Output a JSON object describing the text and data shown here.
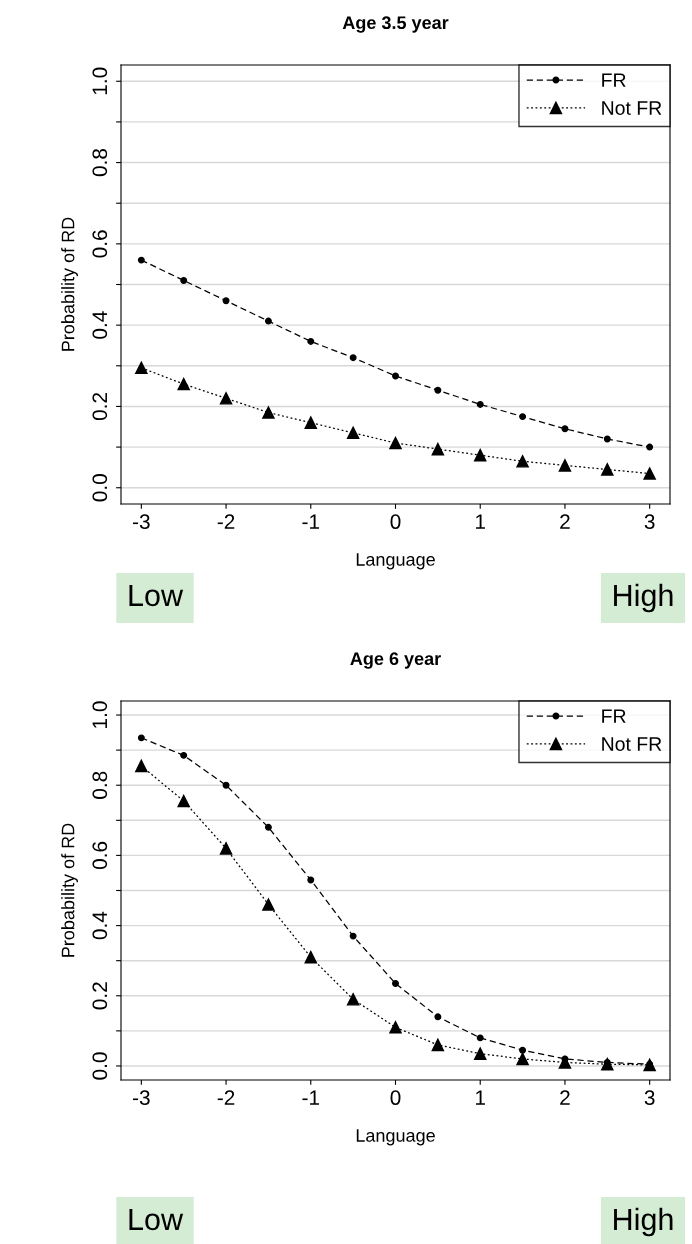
{
  "chart_data": [
    {
      "type": "line",
      "title": "Age 3.5 year",
      "xlabel": "Language",
      "ylabel": "Probability of RD",
      "x": [
        -3,
        -2.5,
        -2,
        -1.5,
        -1,
        -0.5,
        0,
        0.5,
        1,
        1.5,
        2,
        2.5,
        3
      ],
      "series": [
        {
          "name": "FR",
          "color": "#000000",
          "marker": "circle",
          "line_style": "dashed",
          "values": [
            0.56,
            0.51,
            0.46,
            0.41,
            0.36,
            0.32,
            0.275,
            0.24,
            0.205,
            0.175,
            0.145,
            0.12,
            0.1
          ]
        },
        {
          "name": "Not FR",
          "color": "#000000",
          "marker": "triangle",
          "line_style": "dotted",
          "values": [
            0.295,
            0.255,
            0.22,
            0.185,
            0.16,
            0.135,
            0.11,
            0.095,
            0.08,
            0.065,
            0.055,
            0.045,
            0.035
          ]
        }
      ],
      "xlim": [
        -3.24,
        3.24
      ],
      "ylim": [
        -0.04,
        1.04
      ],
      "xticks": [
        -3,
        -2,
        -1,
        0,
        1,
        2,
        3
      ],
      "yticks": [
        {
          "value": 0,
          "label": "0.0"
        },
        {
          "value": 0.1,
          "label": null
        },
        {
          "value": 0.2,
          "label": "0.2"
        },
        {
          "value": 0.3,
          "label": null
        },
        {
          "value": 0.4,
          "label": "0.4"
        },
        {
          "value": 0.5,
          "label": null
        },
        {
          "value": 0.6,
          "label": "0.6"
        },
        {
          "value": 0.7,
          "label": null
        },
        {
          "value": 0.8,
          "label": "0.8"
        },
        {
          "value": 0.9,
          "label": null
        },
        {
          "value": 1.0,
          "label": "1.0"
        }
      ],
      "grid": "y",
      "legend": "top right",
      "annotations": [
        "Low",
        "High"
      ]
    },
    {
      "type": "line",
      "title": "Age 6 year",
      "xlabel": "Language",
      "ylabel": "Probability of RD",
      "x": [
        -3,
        -2.5,
        -2,
        -1.5,
        -1,
        -0.5,
        0,
        0.5,
        1,
        1.5,
        2,
        2.5,
        3
      ],
      "series": [
        {
          "name": "FR",
          "color": "#000000",
          "marker": "circle",
          "line_style": "dashed",
          "values": [
            0.935,
            0.885,
            0.8,
            0.68,
            0.53,
            0.37,
            0.235,
            0.14,
            0.08,
            0.045,
            0.02,
            0.01,
            0.005
          ]
        },
        {
          "name": "Not FR",
          "color": "#000000",
          "marker": "triangle",
          "line_style": "dotted",
          "values": [
            0.855,
            0.755,
            0.62,
            0.46,
            0.31,
            0.19,
            0.11,
            0.06,
            0.035,
            0.02,
            0.01,
            0.005,
            0.003
          ]
        }
      ],
      "xlim": [
        -3.24,
        3.24
      ],
      "ylim": [
        -0.04,
        1.04
      ],
      "xticks": [
        -3,
        -2,
        -1,
        0,
        1,
        2,
        3
      ],
      "yticks": [
        {
          "value": 0,
          "label": "0.0"
        },
        {
          "value": 0.1,
          "label": null
        },
        {
          "value": 0.2,
          "label": "0.2"
        },
        {
          "value": 0.3,
          "label": null
        },
        {
          "value": 0.4,
          "label": "0.4"
        },
        {
          "value": 0.5,
          "label": null
        },
        {
          "value": 0.6,
          "label": "0.6"
        },
        {
          "value": 0.7,
          "label": null
        },
        {
          "value": 0.8,
          "label": "0.8"
        },
        {
          "value": 0.9,
          "label": null
        },
        {
          "value": 1.0,
          "label": "1.0"
        }
      ],
      "grid": "y",
      "legend": "top right",
      "annotations": [
        "Low",
        "High"
      ]
    }
  ]
}
